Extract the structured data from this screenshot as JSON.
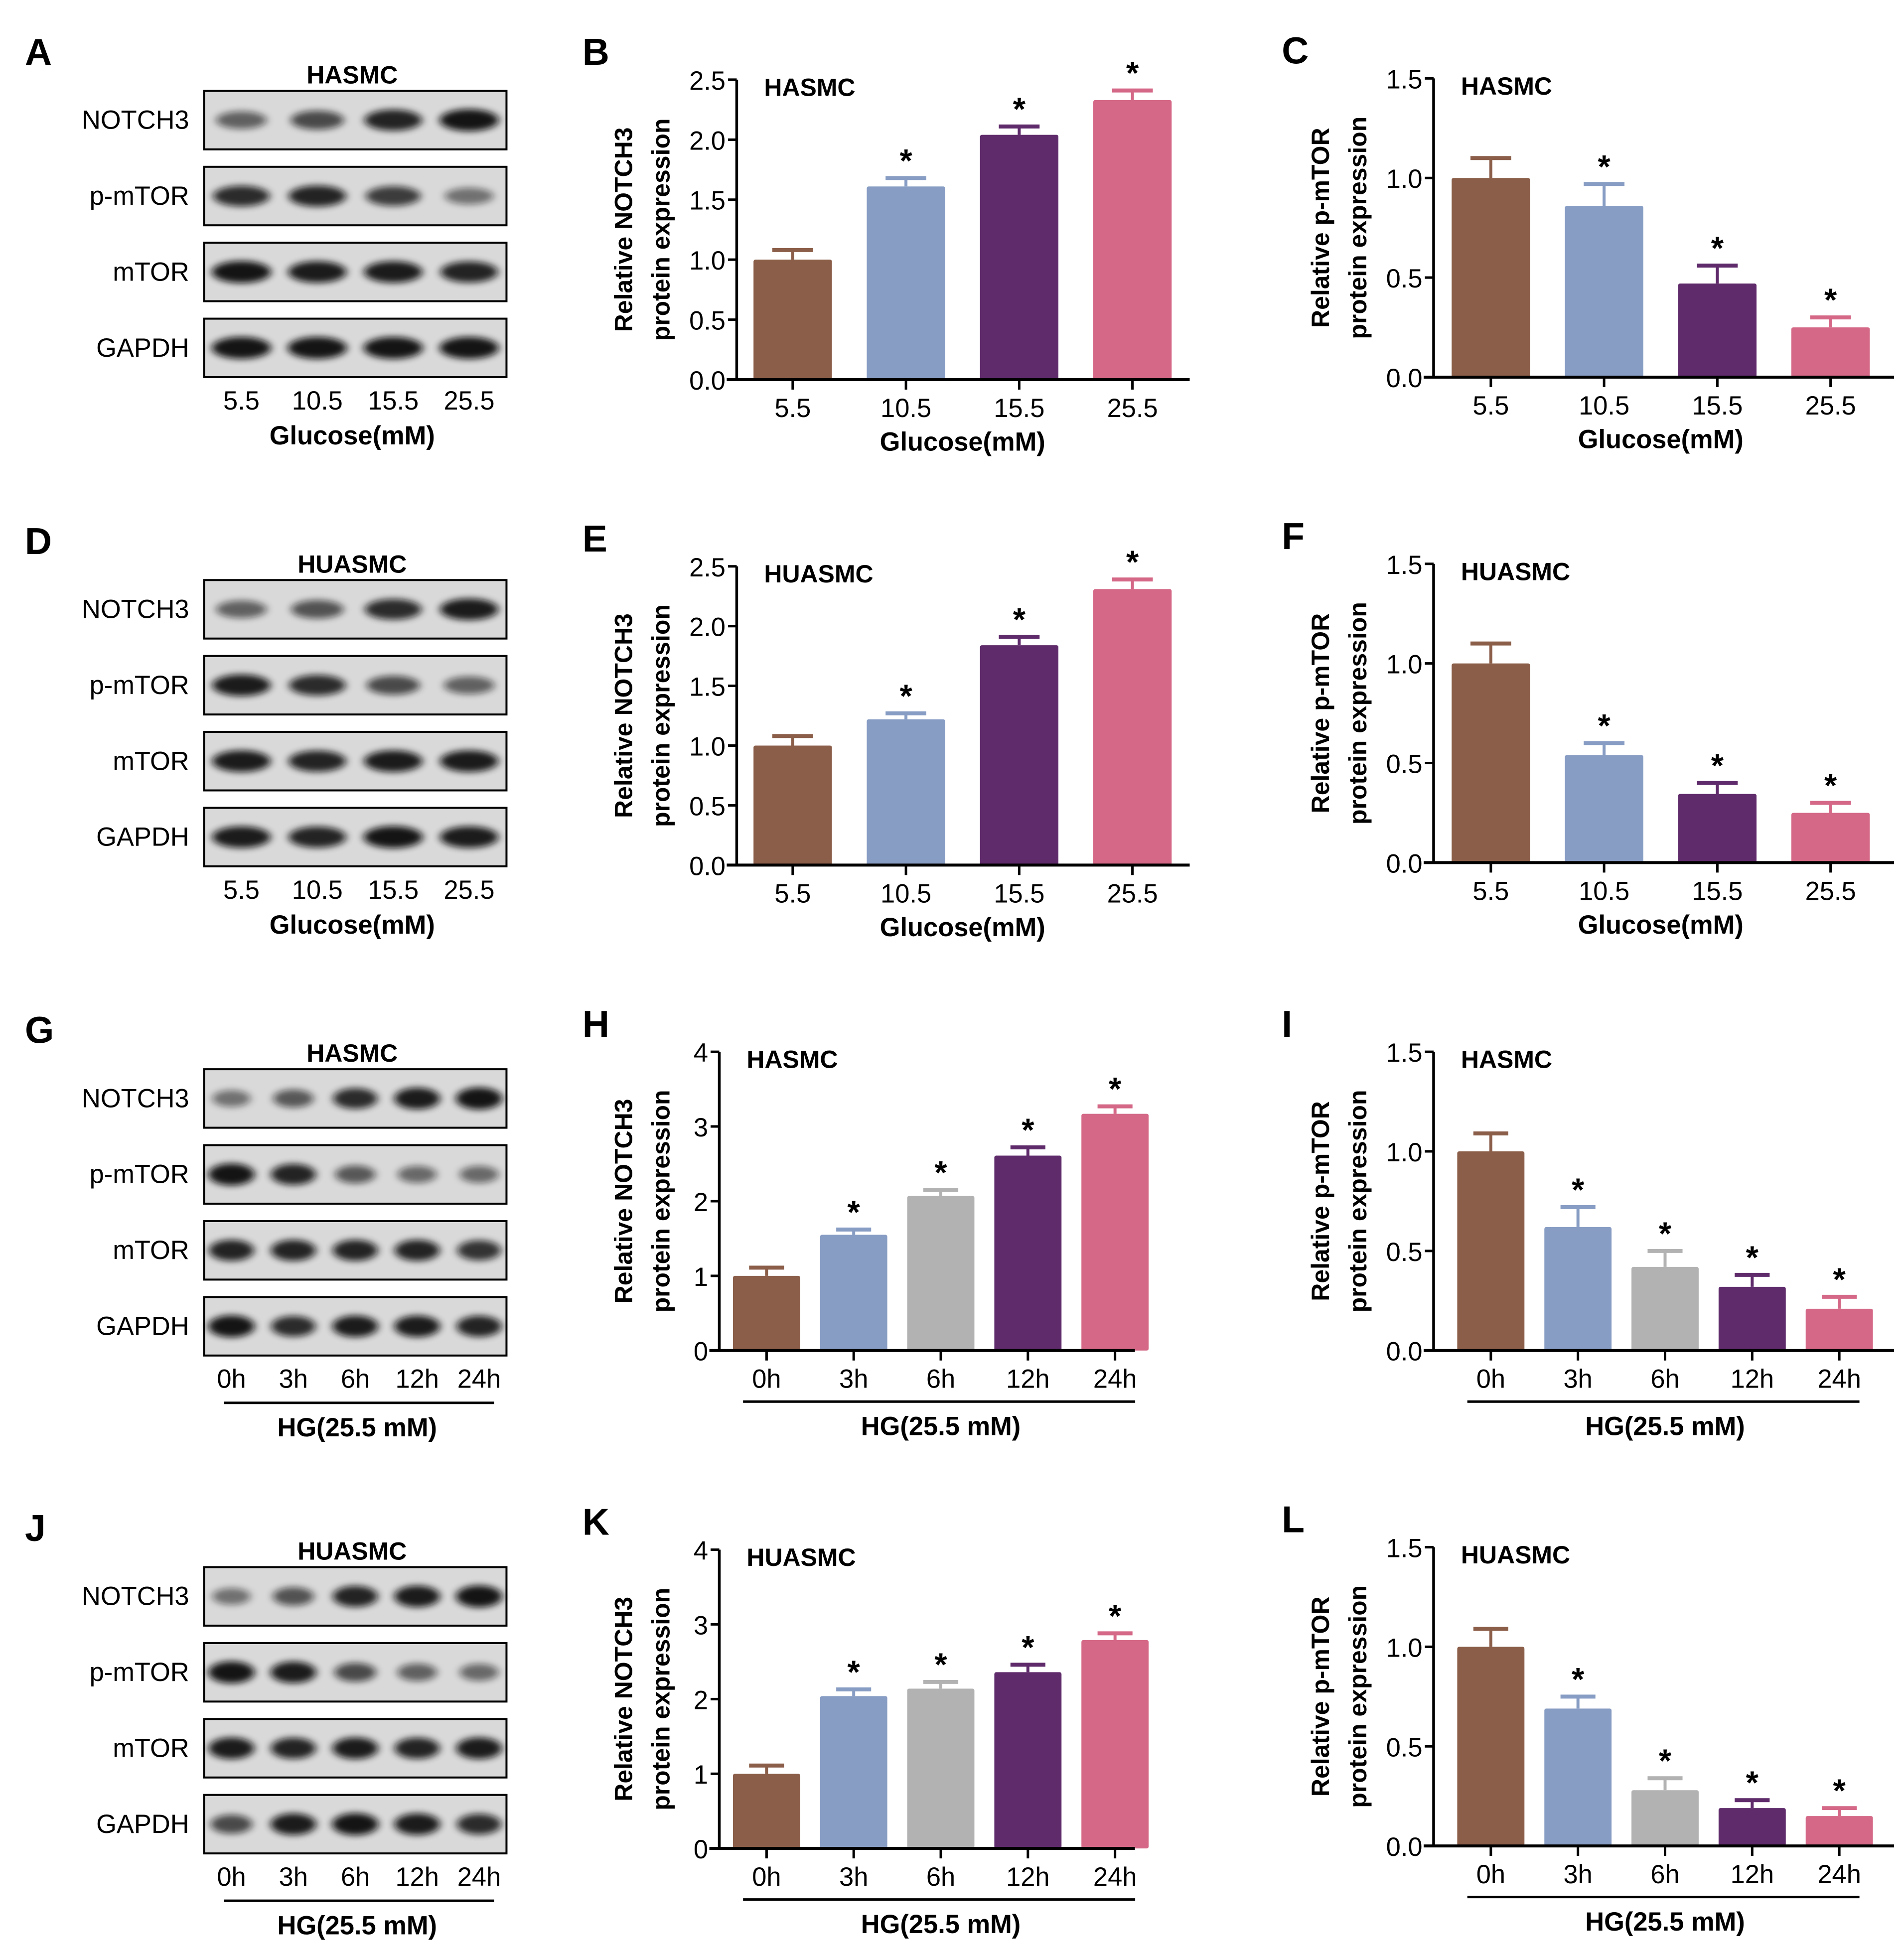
{
  "figure": {
    "colors": {
      "brown": "#8B5E49",
      "blue": "#889DC4",
      "gray": "#B2B2B2",
      "purple": "#5F2B6B",
      "pink": "#D46886",
      "blot_bg": "#D9D9D9",
      "band": "#111111"
    },
    "blots": [
      {
        "panel": "A",
        "cell": "HASMC",
        "proteins": [
          "NOTCH3",
          "p-mTOR",
          "mTOR",
          "GAPDH"
        ],
        "lanes": [
          "5.5",
          "10.5",
          "15.5",
          "25.5"
        ],
        "xlabel": "Glucose(mM)",
        "underline": false,
        "band_intensity": [
          [
            0.45,
            0.6,
            0.85,
            0.95
          ],
          [
            0.8,
            0.85,
            0.7,
            0.35
          ],
          [
            0.95,
            0.9,
            0.9,
            0.85
          ],
          [
            0.95,
            0.95,
            0.95,
            0.95
          ]
        ]
      },
      {
        "panel": "D",
        "cell": "HUASMC",
        "proteins": [
          "NOTCH3",
          "p-mTOR",
          "mTOR",
          "GAPDH"
        ],
        "lanes": [
          "5.5",
          "10.5",
          "15.5",
          "25.5"
        ],
        "xlabel": "Glucose(mM)",
        "underline": false,
        "band_intensity": [
          [
            0.45,
            0.55,
            0.8,
            0.9
          ],
          [
            0.9,
            0.8,
            0.6,
            0.45
          ],
          [
            0.9,
            0.85,
            0.9,
            0.9
          ],
          [
            0.9,
            0.85,
            0.95,
            0.9
          ]
        ]
      },
      {
        "panel": "G",
        "cell": "HASMC",
        "proteins": [
          "NOTCH3",
          "p-mTOR",
          "mTOR",
          "GAPDH"
        ],
        "lanes": [
          "0h",
          "3h",
          "6h",
          "12h",
          "24h"
        ],
        "xlabel": "HG(25.5 mM)",
        "underline": true,
        "band_intensity": [
          [
            0.35,
            0.5,
            0.8,
            0.9,
            0.95
          ],
          [
            0.95,
            0.85,
            0.5,
            0.4,
            0.4
          ],
          [
            0.85,
            0.85,
            0.85,
            0.85,
            0.75
          ],
          [
            0.95,
            0.8,
            0.9,
            0.9,
            0.85
          ]
        ]
      },
      {
        "panel": "J",
        "cell": "HUASMC",
        "proteins": [
          "NOTCH3",
          "p-mTOR",
          "mTOR",
          "GAPDH"
        ],
        "lanes": [
          "0h",
          "3h",
          "6h",
          "12h",
          "24h"
        ],
        "xlabel": "HG(25.5 mM)",
        "underline": true,
        "band_intensity": [
          [
            0.35,
            0.55,
            0.85,
            0.9,
            0.95
          ],
          [
            0.95,
            0.9,
            0.6,
            0.45,
            0.4
          ],
          [
            0.9,
            0.85,
            0.9,
            0.85,
            0.9
          ],
          [
            0.6,
            0.9,
            0.95,
            0.9,
            0.8
          ]
        ]
      }
    ]
  },
  "chart_data": [
    {
      "panel": "B",
      "type": "bar",
      "title": "HASMC",
      "categories": [
        "5.5",
        "10.5",
        "15.5",
        "25.5"
      ],
      "values": [
        1.0,
        1.61,
        2.04,
        2.33
      ],
      "error_upper": [
        1.08,
        1.68,
        2.11,
        2.41
      ],
      "significance": [
        "",
        "*",
        "*",
        "*"
      ],
      "bar_colors": [
        "#8B5E49",
        "#889DC4",
        "#5F2B6B",
        "#D46886"
      ],
      "xlabel": "Glucose(mM)",
      "xlabel_underline": false,
      "ylabel": [
        "Relative NOTCH3",
        "protein expression"
      ],
      "ylim": [
        0,
        2.5
      ],
      "yticks": [
        0.0,
        0.5,
        1.0,
        1.5,
        2.0,
        2.5
      ],
      "ytick_labels": [
        "0.0",
        "0.5",
        "1.0",
        "1.5",
        "2.0",
        "2.5"
      ],
      "grid": false,
      "legend": "none"
    },
    {
      "panel": "C",
      "type": "bar",
      "title": "HASMC",
      "categories": [
        "5.5",
        "10.5",
        "15.5",
        "25.5"
      ],
      "values": [
        1.0,
        0.86,
        0.47,
        0.25
      ],
      "error_upper": [
        1.1,
        0.97,
        0.56,
        0.3
      ],
      "significance": [
        "",
        "*",
        "*",
        "*"
      ],
      "bar_colors": [
        "#8B5E49",
        "#889DC4",
        "#5F2B6B",
        "#D46886"
      ],
      "xlabel": "Glucose(mM)",
      "xlabel_underline": false,
      "ylabel": [
        "Relative p-mTOR",
        "protein expression"
      ],
      "ylim": [
        0,
        1.5
      ],
      "yticks": [
        0.0,
        0.5,
        1.0,
        1.5
      ],
      "ytick_labels": [
        "0.0",
        "0.5",
        "1.0",
        "1.5"
      ],
      "grid": false,
      "legend": "none"
    },
    {
      "panel": "E",
      "type": "bar",
      "title": "HUASMC",
      "categories": [
        "5.5",
        "10.5",
        "15.5",
        "25.5"
      ],
      "values": [
        1.0,
        1.22,
        1.84,
        2.31
      ],
      "error_upper": [
        1.08,
        1.27,
        1.91,
        2.39
      ],
      "significance": [
        "",
        "*",
        "*",
        "*"
      ],
      "bar_colors": [
        "#8B5E49",
        "#889DC4",
        "#5F2B6B",
        "#D46886"
      ],
      "xlabel": "Glucose(mM)",
      "xlabel_underline": false,
      "ylabel": [
        "Relative NOTCH3",
        "protein expression"
      ],
      "ylim": [
        0,
        2.5
      ],
      "yticks": [
        0.0,
        0.5,
        1.0,
        1.5,
        2.0,
        2.5
      ],
      "ytick_labels": [
        "0.0",
        "0.5",
        "1.0",
        "1.5",
        "2.0",
        "2.5"
      ],
      "grid": false,
      "legend": "none"
    },
    {
      "panel": "F",
      "type": "bar",
      "title": "HUASMC",
      "categories": [
        "5.5",
        "10.5",
        "15.5",
        "25.5"
      ],
      "values": [
        1.0,
        0.54,
        0.345,
        0.25
      ],
      "error_upper": [
        1.1,
        0.6,
        0.4,
        0.3
      ],
      "significance": [
        "",
        "*",
        "*",
        "*"
      ],
      "bar_colors": [
        "#8B5E49",
        "#889DC4",
        "#5F2B6B",
        "#D46886"
      ],
      "xlabel": "Glucose(mM)",
      "xlabel_underline": false,
      "ylabel": [
        "Relative p-mTOR",
        "protein expression"
      ],
      "ylim": [
        0,
        1.5
      ],
      "yticks": [
        0.0,
        0.5,
        1.0,
        1.5
      ],
      "ytick_labels": [
        "0.0",
        "0.5",
        "1.0",
        "1.5"
      ],
      "grid": false,
      "legend": "none"
    },
    {
      "panel": "H",
      "type": "bar",
      "title": "HASMC",
      "categories": [
        "0h",
        "3h",
        "6h",
        "12h",
        "24h"
      ],
      "values": [
        1.0,
        1.55,
        2.07,
        2.61,
        3.17
      ],
      "error_upper": [
        1.11,
        1.62,
        2.15,
        2.72,
        3.27
      ],
      "significance": [
        "",
        "*",
        "*",
        "*",
        "*"
      ],
      "bar_colors": [
        "#8B5E49",
        "#889DC4",
        "#B2B2B2",
        "#5F2B6B",
        "#D46886"
      ],
      "xlabel": "HG(25.5 mM)",
      "xlabel_underline": true,
      "ylabel": [
        "Relative NOTCH3",
        "protein expression"
      ],
      "ylim": [
        0,
        4
      ],
      "yticks": [
        0,
        1,
        2,
        3,
        4
      ],
      "ytick_labels": [
        "0",
        "1",
        "2",
        "3",
        "4"
      ],
      "grid": false,
      "legend": "none"
    },
    {
      "panel": "I",
      "type": "bar",
      "title": "HASMC",
      "categories": [
        "0h",
        "3h",
        "6h",
        "12h",
        "24h"
      ],
      "values": [
        1.0,
        0.62,
        0.42,
        0.32,
        0.21
      ],
      "error_upper": [
        1.09,
        0.72,
        0.5,
        0.38,
        0.27
      ],
      "significance": [
        "",
        "*",
        "*",
        "*",
        "*"
      ],
      "bar_colors": [
        "#8B5E49",
        "#889DC4",
        "#B2B2B2",
        "#5F2B6B",
        "#D46886"
      ],
      "xlabel": "HG(25.5 mM)",
      "xlabel_underline": true,
      "ylabel": [
        "Relative p-mTOR",
        "protein expression"
      ],
      "ylim": [
        0,
        1.5
      ],
      "yticks": [
        0.0,
        0.5,
        1.0,
        1.5
      ],
      "ytick_labels": [
        "0.0",
        "0.5",
        "1.0",
        "1.5"
      ],
      "grid": false,
      "legend": "none"
    },
    {
      "panel": "K",
      "type": "bar",
      "title": "HUASMC",
      "categories": [
        "0h",
        "3h",
        "6h",
        "12h",
        "24h"
      ],
      "values": [
        1.0,
        2.04,
        2.14,
        2.36,
        2.79
      ],
      "error_upper": [
        1.11,
        2.13,
        2.23,
        2.46,
        2.88
      ],
      "significance": [
        "",
        "*",
        "*",
        "*",
        "*"
      ],
      "bar_colors": [
        "#8B5E49",
        "#889DC4",
        "#B2B2B2",
        "#5F2B6B",
        "#D46886"
      ],
      "xlabel": "HG(25.5 mM)",
      "xlabel_underline": true,
      "ylabel": [
        "Relative NOTCH3",
        "protein expression"
      ],
      "ylim": [
        0,
        4
      ],
      "yticks": [
        0,
        1,
        2,
        3,
        4
      ],
      "ytick_labels": [
        "0",
        "1",
        "2",
        "3",
        "4"
      ],
      "grid": false,
      "legend": "none"
    },
    {
      "panel": "L",
      "type": "bar",
      "title": "HUASMC",
      "categories": [
        "0h",
        "3h",
        "6h",
        "12h",
        "24h"
      ],
      "values": [
        1.0,
        0.69,
        0.28,
        0.19,
        0.15
      ],
      "error_upper": [
        1.09,
        0.75,
        0.34,
        0.23,
        0.19
      ],
      "significance": [
        "",
        "*",
        "*",
        "*",
        "*"
      ],
      "bar_colors": [
        "#8B5E49",
        "#889DC4",
        "#B2B2B2",
        "#5F2B6B",
        "#D46886"
      ],
      "xlabel": "HG(25.5 mM)",
      "xlabel_underline": true,
      "ylabel": [
        "Relative p-mTOR",
        "protein expression"
      ],
      "ylim": [
        0,
        1.5
      ],
      "yticks": [
        0.0,
        0.5,
        1.0,
        1.5
      ],
      "ytick_labels": [
        "0.0",
        "0.5",
        "1.0",
        "1.5"
      ],
      "grid": false,
      "legend": "none"
    }
  ]
}
